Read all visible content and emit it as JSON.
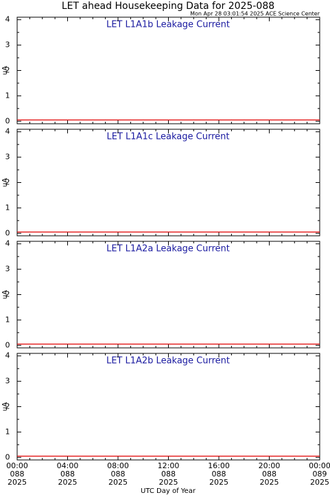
{
  "header": {
    "title": "LET ahead Housekeeping Data for 2025-088",
    "subtitle": "Mon Apr 28 03:01:54 2025 ACE Science Center"
  },
  "chart_data": [
    {
      "type": "line",
      "title": "LET L1A1b Leakage Current",
      "ylabel": "uA",
      "x": [
        0,
        24
      ],
      "series": [
        {
          "color": "#e00000",
          "values": [
            0.05,
            0.05
          ]
        }
      ],
      "xlim": [
        0,
        24
      ],
      "xticks": [
        0,
        4,
        8,
        12,
        16,
        20,
        24
      ],
      "xminorticks": [
        1,
        2,
        3,
        5,
        6,
        7,
        9,
        10,
        11,
        13,
        14,
        15,
        17,
        18,
        19,
        21,
        22,
        23
      ],
      "ylim": [
        -0.1,
        4.1
      ],
      "yticks": [
        0,
        1,
        2,
        3,
        4
      ],
      "yminorticks": [
        0.5,
        1.5,
        2.5,
        3.5
      ]
    },
    {
      "type": "line",
      "title": "LET L1A1c Leakage Current",
      "ylabel": "uA",
      "x": [
        0,
        24
      ],
      "series": [
        {
          "color": "#e00000",
          "values": [
            0.05,
            0.05
          ]
        }
      ],
      "xlim": [
        0,
        24
      ],
      "xticks": [
        0,
        4,
        8,
        12,
        16,
        20,
        24
      ],
      "xminorticks": [
        1,
        2,
        3,
        5,
        6,
        7,
        9,
        10,
        11,
        13,
        14,
        15,
        17,
        18,
        19,
        21,
        22,
        23
      ],
      "ylim": [
        -0.1,
        4.1
      ],
      "yticks": [
        0,
        1,
        2,
        3,
        4
      ],
      "yminorticks": [
        0.5,
        1.5,
        2.5,
        3.5
      ]
    },
    {
      "type": "line",
      "title": "LET L1A2a Leakage Current",
      "ylabel": "uA",
      "x": [
        0,
        24
      ],
      "series": [
        {
          "color": "#e00000",
          "values": [
            0.05,
            0.05
          ]
        }
      ],
      "xlim": [
        0,
        24
      ],
      "xticks": [
        0,
        4,
        8,
        12,
        16,
        20,
        24
      ],
      "xminorticks": [
        1,
        2,
        3,
        5,
        6,
        7,
        9,
        10,
        11,
        13,
        14,
        15,
        17,
        18,
        19,
        21,
        22,
        23
      ],
      "ylim": [
        -0.1,
        4.1
      ],
      "yticks": [
        0,
        1,
        2,
        3,
        4
      ],
      "yminorticks": [
        0.5,
        1.5,
        2.5,
        3.5
      ]
    },
    {
      "type": "line",
      "title": "LET L1A2b Leakage Current",
      "ylabel": "uA",
      "xlabel": "UTC Day of Year",
      "x": [
        0,
        24
      ],
      "series": [
        {
          "color": "#e00000",
          "values": [
            0.05,
            0.05
          ]
        }
      ],
      "xlim": [
        0,
        24
      ],
      "xticks": [
        {
          "value": 0,
          "label": "00:00 088 2025"
        },
        {
          "value": 4,
          "label": "04:00 088 2025"
        },
        {
          "value": 8,
          "label": "08:00 088 2025"
        },
        {
          "value": 12,
          "label": "12:00 088 2025"
        },
        {
          "value": 16,
          "label": "16:00 088 2025"
        },
        {
          "value": 20,
          "label": "20:00 088 2025"
        },
        {
          "value": 24,
          "label": "00:00 089 2025"
        }
      ],
      "xminorticks": [
        1,
        2,
        3,
        5,
        6,
        7,
        9,
        10,
        11,
        13,
        14,
        15,
        17,
        18,
        19,
        21,
        22,
        23
      ],
      "ylim": [
        -0.1,
        4.1
      ],
      "yticks": [
        0,
        1,
        2,
        3,
        4
      ],
      "yminorticks": [
        0.5,
        1.5,
        2.5,
        3.5
      ]
    }
  ]
}
